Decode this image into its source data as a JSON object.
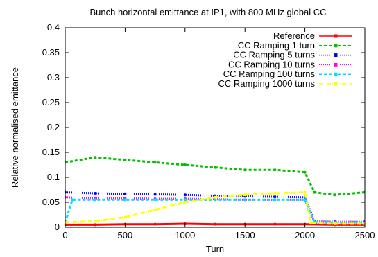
{
  "chart_data": {
    "type": "line",
    "title": "Bunch horizontal emittance at IP1, with 800 MHz global CC",
    "xlabel": "Turn",
    "ylabel": "Relative normalised emittance",
    "xlim": [
      0,
      2500
    ],
    "ylim": [
      0,
      0.4
    ],
    "xticks": [
      0,
      500,
      1000,
      1500,
      2000,
      2500
    ],
    "yticks": [
      0,
      0.05,
      0.1,
      0.15,
      0.2,
      0.25,
      0.3,
      0.35,
      0.4
    ],
    "x_tick_labels": [
      "0",
      "500",
      "1000",
      "1500",
      "2000",
      "2500"
    ],
    "y_tick_labels": [
      "0",
      "0.05",
      "0.1",
      "0.15",
      "0.2",
      "0.25",
      "0.3",
      "0.35",
      "0.4"
    ],
    "legend_position": "top-right",
    "series": [
      {
        "name": "Reference",
        "color": "#ff0000",
        "style": "solid",
        "marker": "plus",
        "x": [
          0,
          250,
          500,
          750,
          1000,
          1250,
          1500,
          1750,
          2000,
          2250,
          2500
        ],
        "y": [
          0.005,
          0.005,
          0.006,
          0.006,
          0.007,
          0.006,
          0.006,
          0.006,
          0.006,
          0.005,
          0.005
        ]
      },
      {
        "name": "CC Ramping 1 turn",
        "color": "#00c000",
        "style": "dashed",
        "marker": "cross",
        "x": [
          0,
          250,
          500,
          750,
          1000,
          1250,
          1500,
          1750,
          2000,
          2080,
          2250,
          2500
        ],
        "y": [
          0.13,
          0.14,
          0.135,
          0.13,
          0.125,
          0.12,
          0.115,
          0.115,
          0.11,
          0.07,
          0.065,
          0.07
        ]
      },
      {
        "name": "CC Ramping 5 turns",
        "color": "#0000ff",
        "style": "dotted",
        "marker": "star",
        "x": [
          0,
          250,
          500,
          750,
          1000,
          1250,
          1500,
          1750,
          2000,
          2080,
          2250,
          2500
        ],
        "y": [
          0.07,
          0.068,
          0.067,
          0.066,
          0.065,
          0.063,
          0.062,
          0.061,
          0.06,
          0.012,
          0.011,
          0.011
        ]
      },
      {
        "name": "CC Ramping 10 turns",
        "color": "#ff00ff",
        "style": "dotted",
        "marker": "square",
        "x": [
          0,
          250,
          500,
          750,
          1000,
          1250,
          1500,
          1750,
          2000,
          2080,
          2250,
          2500
        ],
        "y": [
          0.06,
          0.058,
          0.058,
          0.057,
          0.057,
          0.056,
          0.055,
          0.055,
          0.055,
          0.011,
          0.01,
          0.01
        ]
      },
      {
        "name": "CC Ramping 100 turns",
        "color": "#00e0ff",
        "style": "dashed",
        "marker": "filled-square",
        "x": [
          0,
          60,
          250,
          500,
          750,
          1000,
          1250,
          1500,
          1750,
          2000,
          2080,
          2250,
          2500
        ],
        "y": [
          0.01,
          0.055,
          0.055,
          0.055,
          0.055,
          0.055,
          0.055,
          0.055,
          0.055,
          0.055,
          0.01,
          0.009,
          0.009
        ]
      },
      {
        "name": "CC Ramping 1000 turns",
        "color": "#ffff00",
        "style": "dash-dot",
        "marker": "filled-circle",
        "x": [
          0,
          250,
          500,
          750,
          1000,
          1250,
          1500,
          1750,
          2000,
          2050,
          2250,
          2500
        ],
        "y": [
          0.01,
          0.012,
          0.02,
          0.035,
          0.05,
          0.06,
          0.065,
          0.068,
          0.07,
          0.008,
          0.007,
          0.007
        ]
      }
    ]
  }
}
